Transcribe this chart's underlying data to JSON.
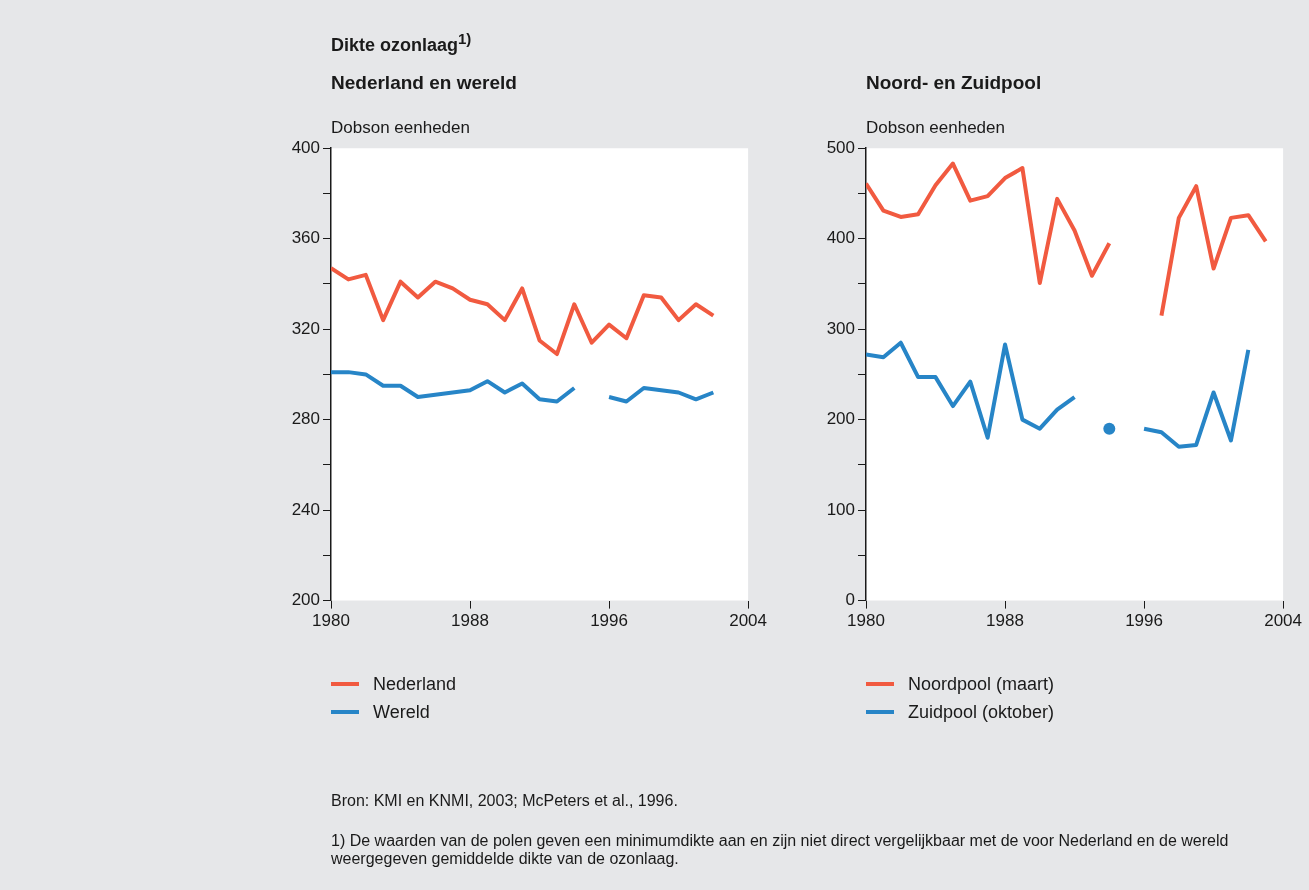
{
  "chart_data": [
    {
      "type": "line",
      "title": "Dikte ozonlaag$^{1)}$",
      "subtitle": "Nederland en wereld",
      "ylabel": "Dobson eenheden",
      "x": [
        1980,
        1981,
        1982,
        1983,
        1984,
        1985,
        1986,
        1987,
        1988,
        1989,
        1990,
        1991,
        1992,
        1993,
        1994,
        1995,
        1996,
        1997,
        1998,
        1999,
        2000,
        2001,
        2002
      ],
      "series": [
        {
          "name": "Nederland",
          "color": "#f15a40",
          "values": [
            347,
            342,
            344,
            324,
            341,
            334,
            341,
            338,
            333,
            331,
            324,
            338,
            315,
            309,
            331,
            314,
            322,
            316,
            335,
            334,
            324,
            331,
            326
          ]
        },
        {
          "name": "Wereld",
          "color": "#2785c7",
          "values": [
            301,
            301,
            300,
            295,
            295,
            290,
            291,
            292,
            293,
            297,
            292,
            296,
            289,
            288,
            294,
            null,
            290,
            288,
            294,
            293,
            292,
            289,
            292
          ]
        }
      ],
      "xlim": [
        1980,
        2004
      ],
      "xticks": [
        1980,
        1988,
        1996,
        2004
      ],
      "ylim": [
        200,
        400
      ],
      "yticks": [
        200,
        {
          "value": 220,
          "label": null
        },
        240,
        {
          "value": 260,
          "label": null
        },
        280,
        {
          "value": 300,
          "label": null
        },
        320,
        {
          "value": 340,
          "label": null
        },
        360,
        {
          "value": 380,
          "label": null
        },
        400
      ],
      "grid": false,
      "legend": "bottom",
      "annotations": [
        "Bron: KMI en KNMI, 2003; McPeters et al., 1996.",
        "1) De waarden van de polen geven een minimumdikte aan en zijn niet direct vergelijkbaar met de voor Nederland en de wereld weergegeven gemiddelde dikte van de ozonlaag."
      ]
    },
    {
      "type": "line",
      "title": "Noord- en Zuidpool",
      "ylabel": "Dobson eenheden",
      "x": [
        1980,
        1981,
        1982,
        1983,
        1984,
        1985,
        1986,
        1987,
        1988,
        1989,
        1990,
        1991,
        1992,
        1993,
        1994,
        1995,
        1996,
        1997,
        1998,
        1999,
        2000,
        2001,
        2002,
        2003
      ],
      "series": [
        {
          "name": "Noordpool (maart)",
          "color": "#f15a40",
          "values": [
            461,
            431,
            424,
            427,
            459,
            483,
            442,
            447,
            467,
            478,
            351,
            444,
            409,
            359,
            395,
            null,
            null,
            315,
            423,
            458,
            367,
            423,
            426,
            397
          ]
        },
        {
          "name": "Zuidpool (oktober)",
          "color": "#2785c7",
          "values": [
            272,
            269,
            285,
            247,
            247,
            215,
            242,
            180,
            283,
            200,
            190,
            211,
            225,
            null,
            190,
            null,
            190,
            186,
            170,
            172,
            230,
            177,
            277,
            null
          ]
        }
      ],
      "xlim": [
        1980,
        2004
      ],
      "xticks": [
        1980,
        1988,
        1996,
        2004
      ],
      "ylim": [
        0,
        500
      ],
      "yticks": [
        0,
        {
          "value": 50,
          "label": null
        },
        100,
        {
          "value": 150,
          "label": null
        },
        200,
        {
          "value": 250,
          "label": null
        },
        300,
        {
          "value": 350,
          "label": null
        },
        400,
        {
          "value": 450,
          "label": null
        },
        500
      ],
      "grid": false,
      "legend": "bottom"
    }
  ]
}
